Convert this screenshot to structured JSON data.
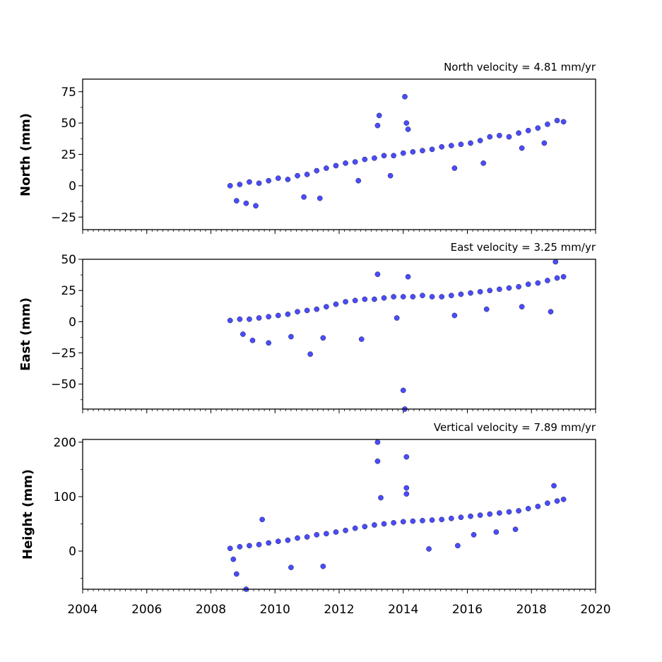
{
  "chart_data": [
    {
      "type": "scatter",
      "panel": "north",
      "ylabel": "North (mm)",
      "annotation": "North velocity = 4.81 mm/yr",
      "velocity_mm_per_yr": 4.81,
      "xlim": [
        2004,
        2020
      ],
      "ylim": [
        -35,
        85
      ],
      "yticks": [
        -25,
        0,
        25,
        50,
        75
      ],
      "xticks": [
        2004,
        2006,
        2008,
        2010,
        2012,
        2014,
        2016,
        2018,
        2020
      ],
      "series": [
        {
          "x": [
            2008.6,
            2008.9,
            2009.2,
            2009.5,
            2009.8,
            2010.1,
            2010.4,
            2010.7,
            2011.0,
            2011.3,
            2011.6,
            2011.9,
            2012.2,
            2012.5,
            2012.8,
            2013.1,
            2013.4,
            2013.7,
            2014.0,
            2014.3,
            2014.6,
            2014.9,
            2015.2,
            2015.5,
            2015.8,
            2016.1,
            2016.4,
            2016.7,
            2017.0,
            2017.3,
            2017.6,
            2017.9,
            2018.2,
            2018.5,
            2018.8,
            2019.0,
            2008.8,
            2009.1,
            2009.4,
            2010.9,
            2011.4,
            2012.6,
            2013.25,
            2013.2,
            2014.05,
            2014.1,
            2014.15,
            2013.6,
            2015.6,
            2016.5,
            2017.7,
            2018.4
          ],
          "y": [
            0,
            1,
            3,
            2,
            4,
            6,
            5,
            8,
            9,
            12,
            14,
            16,
            18,
            19,
            21,
            22,
            24,
            24,
            26,
            27,
            28,
            29,
            31,
            32,
            33,
            34,
            36,
            39,
            40,
            39,
            42,
            44,
            46,
            49,
            52,
            51,
            -12,
            -14,
            -16,
            -9,
            -10,
            4,
            56,
            48,
            71,
            50,
            45,
            8,
            14,
            18,
            30,
            34
          ]
        }
      ]
    },
    {
      "type": "scatter",
      "panel": "east",
      "ylabel": "East (mm)",
      "annotation": "East velocity = 3.25 mm/yr",
      "velocity_mm_per_yr": 3.25,
      "xlim": [
        2004,
        2020
      ],
      "ylim": [
        -70,
        50
      ],
      "yticks": [
        -50,
        -25,
        0,
        25,
        50
      ],
      "xticks": [
        2004,
        2006,
        2008,
        2010,
        2012,
        2014,
        2016,
        2018,
        2020
      ],
      "series": [
        {
          "x": [
            2008.6,
            2008.9,
            2009.2,
            2009.5,
            2009.8,
            2010.1,
            2010.4,
            2010.7,
            2011.0,
            2011.3,
            2011.6,
            2011.9,
            2012.2,
            2012.5,
            2012.8,
            2013.1,
            2013.4,
            2013.7,
            2014.0,
            2014.3,
            2014.6,
            2014.9,
            2015.2,
            2015.5,
            2015.8,
            2016.1,
            2016.4,
            2016.7,
            2017.0,
            2017.3,
            2017.6,
            2017.9,
            2018.2,
            2018.5,
            2018.8,
            2019.0,
            2009.0,
            2009.3,
            2009.8,
            2010.5,
            2011.1,
            2011.5,
            2012.7,
            2013.2,
            2014.0,
            2014.05,
            2014.15,
            2013.8,
            2015.6,
            2016.6,
            2017.7,
            2018.6,
            2018.75
          ],
          "y": [
            1,
            2,
            2,
            3,
            4,
            5,
            6,
            8,
            9,
            10,
            12,
            14,
            16,
            17,
            18,
            18,
            19,
            20,
            20,
            20,
            21,
            20,
            20,
            21,
            22,
            23,
            24,
            25,
            26,
            27,
            28,
            30,
            31,
            33,
            35,
            36,
            -10,
            -15,
            -17,
            -12,
            -26,
            -13,
            -14,
            38,
            -55,
            -70,
            36,
            3,
            5,
            10,
            12,
            8,
            48
          ]
        }
      ]
    },
    {
      "type": "scatter",
      "panel": "height",
      "ylabel": "Height (mm)",
      "annotation": "Vertical velocity = 7.89 mm/yr",
      "velocity_mm_per_yr": 7.89,
      "xlim": [
        2004,
        2020
      ],
      "ylim": [
        -70,
        205
      ],
      "yticks": [
        0,
        100,
        200
      ],
      "xticks": [
        2004,
        2006,
        2008,
        2010,
        2012,
        2014,
        2016,
        2018,
        2020
      ],
      "xticklabels": [
        "2004",
        "2006",
        "2008",
        "2010",
        "2012",
        "2014",
        "2016",
        "2018",
        "2020"
      ],
      "series": [
        {
          "x": [
            2008.6,
            2008.9,
            2009.2,
            2009.5,
            2009.8,
            2010.1,
            2010.4,
            2010.7,
            2011.0,
            2011.3,
            2011.6,
            2011.9,
            2012.2,
            2012.5,
            2012.8,
            2013.1,
            2013.4,
            2013.7,
            2014.0,
            2014.3,
            2014.6,
            2014.9,
            2015.2,
            2015.5,
            2015.8,
            2016.1,
            2016.4,
            2016.7,
            2017.0,
            2017.3,
            2017.6,
            2017.9,
            2018.2,
            2018.5,
            2018.8,
            2019.0,
            2008.7,
            2008.8,
            2009.1,
            2009.6,
            2010.5,
            2011.5,
            2013.2,
            2013.2,
            2014.1,
            2014.1,
            2014.1,
            2013.3,
            2014.8,
            2015.7,
            2016.2,
            2016.9,
            2017.5,
            2018.7
          ],
          "y": [
            5,
            8,
            10,
            12,
            15,
            18,
            20,
            24,
            26,
            30,
            32,
            35,
            38,
            42,
            45,
            48,
            50,
            52,
            54,
            55,
            56,
            57,
            58,
            60,
            62,
            64,
            66,
            68,
            70,
            72,
            74,
            78,
            82,
            88,
            92,
            95,
            -15,
            -42,
            -70,
            58,
            -30,
            -28,
            200,
            165,
            173,
            116,
            105,
            98,
            4,
            10,
            30,
            35,
            40,
            120
          ]
        }
      ]
    }
  ]
}
